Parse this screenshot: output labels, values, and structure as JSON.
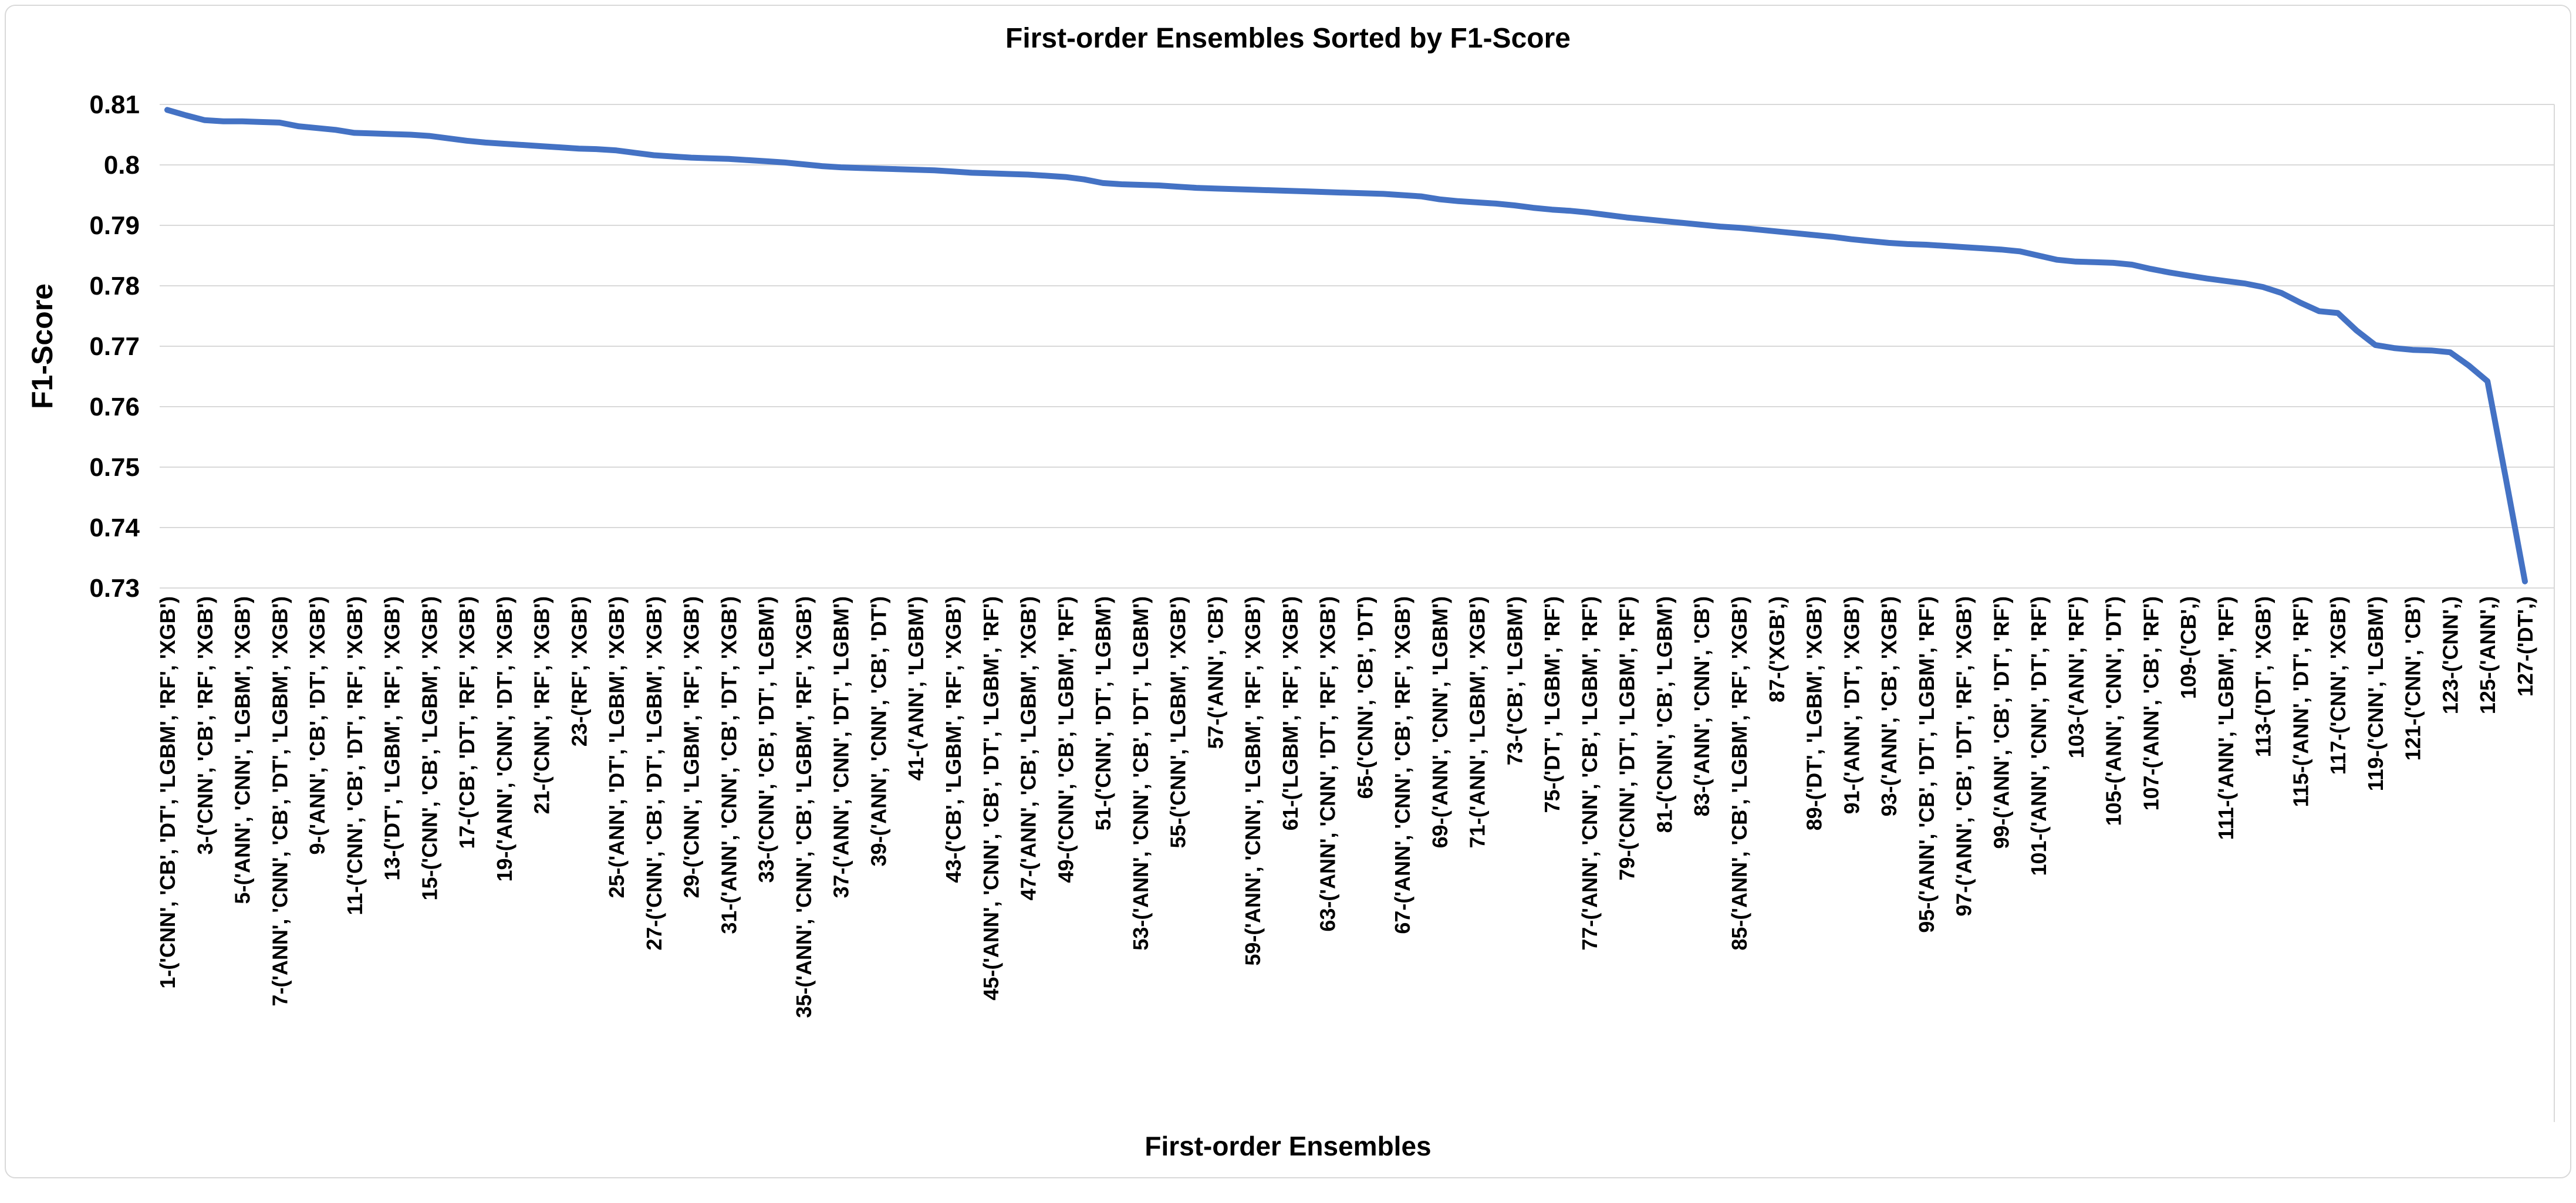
{
  "chart": {
    "title": "First-order Ensembles Sorted by F1-Score",
    "x_axis_title": "First-order Ensembles",
    "y_axis_title": "F1-Score"
  },
  "chart_data": {
    "type": "line",
    "title": "First-order Ensembles Sorted by F1-Score",
    "xlabel": "First-order Ensembles",
    "ylabel": "F1-Score",
    "ylim": [
      0.73,
      0.81
    ],
    "ytick_labels": [
      "0.81",
      "0.8",
      "0.79",
      "0.78",
      "0.77",
      "0.76",
      "0.75",
      "0.74",
      "0.73"
    ],
    "grid": true,
    "legend": "none",
    "line_color": "#4472C4",
    "gridline_color": "#D9D9D9",
    "text_color": "#000000",
    "x_count": 127,
    "note": "127 first-order ensembles sorted descending by F1-score; only odd-numbered ensembles carry axis labels",
    "categories_odd": [
      "1-('CNN', 'CB', 'DT', 'LGBM', 'RF', 'XGB')",
      "3-('CNN', 'CB', 'RF', 'XGB')",
      "5-('ANN', 'CNN', 'LGBM', 'XGB')",
      "7-('ANN', 'CNN', 'CB', 'DT', 'LGBM', 'XGB')",
      "9-('ANN', 'CB', 'DT', 'XGB')",
      "11-('CNN', 'CB', 'DT', 'RF', 'XGB')",
      "13-('DT', 'LGBM', 'RF', 'XGB')",
      "15-('CNN', 'CB', 'LGBM', 'XGB')",
      "17-('CB', 'DT', 'RF', 'XGB')",
      "19-('ANN', 'CNN', 'DT', 'XGB')",
      "21-('CNN', 'RF', 'XGB')",
      "23-('RF', 'XGB')",
      "25-('ANN', 'DT', 'LGBM', 'XGB')",
      "27-('CNN', 'CB', 'DT', 'LGBM', 'XGB')",
      "29-('CNN', 'LGBM', 'RF', 'XGB')",
      "31-('ANN', 'CNN', 'CB', 'DT', 'XGB')",
      "33-('CNN', 'CB', 'DT', 'LGBM')",
      "35-('ANN', 'CNN', 'CB', 'LGBM', 'RF', 'XGB')",
      "37-('ANN', 'CNN', 'DT', 'LGBM')",
      "39-('ANN', 'CNN', 'CB', 'DT')",
      "41-('ANN', 'LGBM')",
      "43-('CB', 'LGBM', 'RF', 'XGB')",
      "45-('ANN', 'CNN', 'CB', 'DT', 'LGBM', 'RF')",
      "47-('ANN', 'CB', 'LGBM', 'XGB')",
      "49-('CNN', 'CB', 'LGBM', 'RF')",
      "51-('CNN', 'DT', 'LGBM')",
      "53-('ANN', 'CNN', 'CB', 'DT', 'LGBM')",
      "55-('CNN', 'LGBM', 'XGB')",
      "57-('ANN', 'CB')",
      "59-('ANN', 'CNN', 'LGBM', 'RF', 'XGB')",
      "61-('LGBM', 'RF', 'XGB')",
      "63-('ANN', 'CNN', 'DT', 'RF', 'XGB')",
      "65-('CNN', 'CB', 'DT')",
      "67-('ANN', 'CNN', 'CB', 'RF', 'XGB')",
      "69-('ANN', 'CNN', 'LGBM')",
      "71-('ANN', 'LGBM', 'XGB')",
      "73-('CB', 'LGBM')",
      "75-('DT', 'LGBM', 'RF')",
      "77-('ANN', 'CNN', 'CB', 'LGBM', 'RF')",
      "79-('CNN', 'DT', 'LGBM', 'RF')",
      "81-('CNN', 'CB', 'LGBM')",
      "83-('ANN', 'CNN', 'CB')",
      "85-('ANN', 'CB', 'LGBM', 'RF', 'XGB')",
      "87-('XGB',)",
      "89-('DT', 'LGBM', 'XGB')",
      "91-('ANN', 'DT', 'XGB')",
      "93-('ANN', 'CB', 'XGB')",
      "95-('ANN', 'CB', 'DT', 'LGBM', 'RF')",
      "97-('ANN', 'CB', 'DT', 'RF', 'XGB')",
      "99-('ANN', 'CB', 'DT', 'RF')",
      "101-('ANN', 'CNN', 'DT', 'RF')",
      "103-('ANN', 'RF')",
      "105-('ANN', 'CNN', 'DT')",
      "107-('ANN', 'CB', 'RF')",
      "109-('CB',)",
      "111-('ANN', 'LGBM', 'RF')",
      "113-('DT', 'XGB')",
      "115-('ANN', 'DT', 'RF')",
      "117-('CNN', 'XGB')",
      "119-('CNN', 'LGBM')",
      "121-('CNN', 'CB')",
      "123-('CNN',)",
      "125-('ANN',)",
      "127-('DT',)"
    ],
    "values": [
      0.8091,
      0.8082,
      0.8074,
      0.8072,
      0.8072,
      0.8071,
      0.807,
      0.8064,
      0.8061,
      0.8058,
      0.8053,
      0.8052,
      0.8051,
      0.805,
      0.8048,
      0.8044,
      0.804,
      0.8037,
      0.8035,
      0.8033,
      0.8031,
      0.8029,
      0.8027,
      0.8026,
      0.8024,
      0.802,
      0.8016,
      0.8014,
      0.8012,
      0.8011,
      0.801,
      0.8008,
      0.8006,
      0.8004,
      0.8001,
      0.7998,
      0.7996,
      0.7995,
      0.7994,
      0.7993,
      0.7992,
      0.7991,
      0.7989,
      0.7987,
      0.7986,
      0.7985,
      0.7984,
      0.7982,
      0.798,
      0.7976,
      0.797,
      0.7968,
      0.7967,
      0.7966,
      0.7964,
      0.7962,
      0.7961,
      0.796,
      0.7959,
      0.7958,
      0.7957,
      0.7956,
      0.7955,
      0.7954,
      0.7953,
      0.7952,
      0.795,
      0.7948,
      0.7943,
      0.794,
      0.7938,
      0.7936,
      0.7933,
      0.7929,
      0.7926,
      0.7924,
      0.7921,
      0.7917,
      0.7913,
      0.791,
      0.7907,
      0.7904,
      0.7901,
      0.7898,
      0.7896,
      0.7893,
      0.789,
      0.7887,
      0.7884,
      0.7881,
      0.7877,
      0.7874,
      0.7871,
      0.7869,
      0.7868,
      0.7866,
      0.7864,
      0.7862,
      0.786,
      0.7857,
      0.785,
      0.7843,
      0.784,
      0.7839,
      0.7838,
      0.7835,
      0.7828,
      0.7822,
      0.7817,
      0.7812,
      0.7808,
      0.7804,
      0.7798,
      0.7788,
      0.7772,
      0.7758,
      0.7755,
      0.7726,
      0.7702,
      0.7697,
      0.7694,
      0.7693,
      0.769,
      0.7668,
      0.7642,
      0.7478,
      0.7311
    ]
  }
}
